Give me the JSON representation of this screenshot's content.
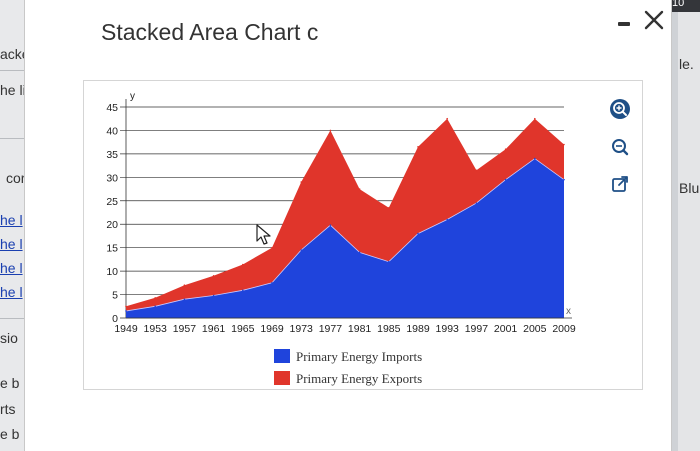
{
  "background": {
    "left_fragments": [
      {
        "text": "acke",
        "link": false
      },
      {
        "text": "he li",
        "link": false
      },
      {
        "text": "cor",
        "link": false
      },
      {
        "text": "he l",
        "link": true
      },
      {
        "text": "he l",
        "link": true
      },
      {
        "text": "he l",
        "link": true
      },
      {
        "text": "he l",
        "link": true
      },
      {
        "text": "sio",
        "link": false
      },
      {
        "text": "e b",
        "link": false
      },
      {
        "text": "rts",
        "link": false
      },
      {
        "text": "e b",
        "link": false
      }
    ],
    "right_fragments": [
      "le.",
      "Blu"
    ],
    "top_right": "10"
  },
  "dialog": {
    "title": "Stacked Area Chart c"
  },
  "toolbar": {
    "icons": [
      "zoom-in-icon",
      "zoom-out-icon",
      "open-in-new-window-icon"
    ]
  },
  "colors": {
    "imports": "#1f44dc",
    "exports": "#e0352b",
    "icon": "#1e4f86"
  },
  "chart_data": {
    "type": "area",
    "stacked": true,
    "xlabel": "x",
    "ylabel": "y",
    "ylim": [
      0,
      45
    ],
    "yticks": [
      0,
      5,
      10,
      15,
      20,
      25,
      30,
      35,
      40,
      45
    ],
    "xticks": [
      1949,
      1953,
      1957,
      1961,
      1965,
      1969,
      1973,
      1977,
      1981,
      1985,
      1989,
      1993,
      1997,
      2001,
      2005,
      2009
    ],
    "xlim": [
      1949,
      2009
    ],
    "grid": true,
    "legend_position": "bottom",
    "x": [
      1949,
      1953,
      1957,
      1961,
      1965,
      1969,
      1973,
      1977,
      1981,
      1985,
      1989,
      1993,
      1997,
      2001,
      2005,
      2009
    ],
    "series": [
      {
        "name": "Primary Energy Imports",
        "color": "#1f44dc",
        "values": [
          1.5,
          2.5,
          4,
          4.8,
          5.9,
          7.5,
          14.5,
          19.8,
          14,
          12,
          18,
          21,
          24.5,
          29.5,
          34,
          29.5
        ]
      },
      {
        "name": "Primary Energy Exports",
        "color": "#e0352b",
        "values": [
          1,
          1.8,
          3,
          4.2,
          5.5,
          7.5,
          14.5,
          20.2,
          13.5,
          11.5,
          18.5,
          21.5,
          7,
          6.5,
          8.5,
          7.5
        ]
      }
    ]
  }
}
